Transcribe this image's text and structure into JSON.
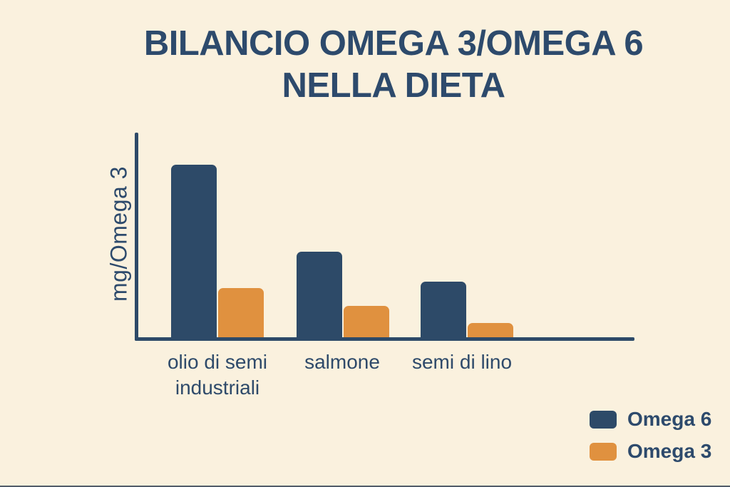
{
  "page": {
    "background": "#faf1de",
    "bottom_edge_color": "#283747"
  },
  "title": {
    "line1": "BILANCIO OMEGA 3/OMEGA 6",
    "line2": "NELLA DIETA",
    "color": "#2d4a6c"
  },
  "chart_data": {
    "type": "bar",
    "title": "BILANCIO OMEGA 3/OMEGA 6 NELLA DIETA",
    "categories": [
      "olio di semi industriali",
      "salmone",
      "semi di lino"
    ],
    "series": [
      {
        "name": "Omega 6",
        "color": "#2d4a68",
        "values": [
          100,
          50,
          33
        ]
      },
      {
        "name": "Omega 3",
        "color": "#e0913f",
        "values": [
          29,
          19,
          9
        ]
      }
    ],
    "xlabel": "",
    "ylabel": "mg/Omega 3",
    "ylim": [
      0,
      119
    ],
    "y_tick_labels_shown": false,
    "value_labels_shown": false,
    "grid": false,
    "legend_position": "bottom-right",
    "bar_corner_radius": "rounded-top"
  }
}
